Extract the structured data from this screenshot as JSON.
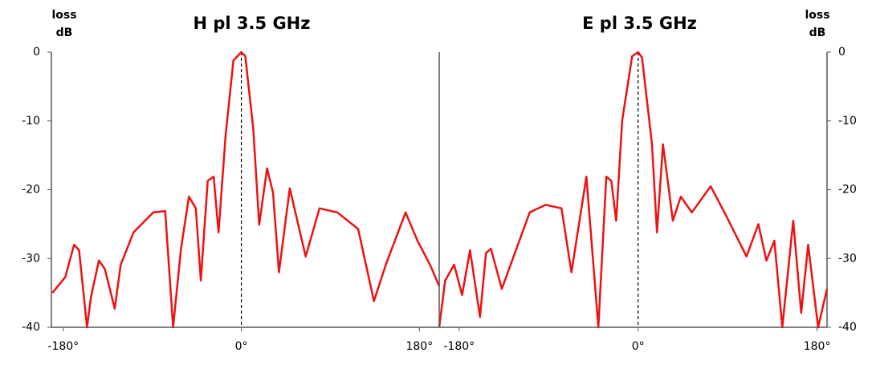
{
  "chart_data": [
    {
      "type": "line",
      "title": "H pl 3.5 GHz",
      "y_label": "loss dB",
      "y_axis_side": "left",
      "xlim": [
        -192,
        200
      ],
      "ylim": [
        -40,
        0
      ],
      "xticks": [
        {
          "value": -180,
          "label": "-180°"
        },
        {
          "value": 0,
          "label": "0°"
        },
        {
          "value": 180,
          "label": "180°"
        }
      ],
      "yticks": [
        0,
        -10,
        -20,
        -30,
        -40
      ],
      "series": [
        {
          "color": "#ee1111",
          "x": [
            -191,
            -178,
            -169,
            -164,
            -156,
            -152,
            -144,
            -138,
            -128,
            -122,
            -109,
            -89,
            -77,
            -69,
            -61,
            -53,
            -46,
            -41,
            -34,
            -28,
            -23,
            -16,
            -8,
            0,
            4,
            12,
            18,
            26,
            32,
            38,
            49,
            65,
            79,
            97,
            118,
            134,
            146,
            166,
            178,
            191,
            200
          ],
          "values": [
            -35,
            -32.7,
            -28,
            -28.8,
            -40,
            -35.6,
            -30.3,
            -31.5,
            -37.3,
            -30.9,
            -26.2,
            -23.3,
            -23.1,
            -40,
            -28.6,
            -21,
            -22.7,
            -33.2,
            -18.7,
            -18.1,
            -26.2,
            -12.2,
            -1.2,
            0,
            -0.6,
            -11.1,
            -25.1,
            -16.9,
            -20.4,
            -32,
            -19.8,
            -29.7,
            -22.7,
            -23.3,
            -25.7,
            -36.2,
            -30.9,
            -23.3,
            -27.4,
            -31,
            -34
          ]
        }
      ]
    },
    {
      "type": "line",
      "title": "E pl 3.5 GHz",
      "y_label": "loss dB",
      "y_axis_side": "right",
      "xlim": [
        -200,
        190
      ],
      "ylim": [
        -40,
        0
      ],
      "xticks": [
        {
          "value": -180,
          "label": "-180°"
        },
        {
          "value": 0,
          "label": "0°"
        },
        {
          "value": 180,
          "label": "180°"
        }
      ],
      "yticks": [
        0,
        -10,
        -20,
        -30,
        -40
      ],
      "series": [
        {
          "color": "#ee1111",
          "x": [
            -200,
            -194,
            -185,
            -177,
            -169,
            -159,
            -153,
            -148,
            -137,
            -109,
            -93,
            -77,
            -67,
            -52,
            -40,
            -32,
            -27,
            -22,
            -16,
            -6,
            0,
            4,
            14,
            19,
            25,
            35,
            43,
            54,
            73,
            89,
            109,
            121,
            129,
            137,
            145,
            156,
            164,
            171,
            181,
            190
          ],
          "values": [
            -40,
            -33.2,
            -30.9,
            -35.3,
            -28.8,
            -38.5,
            -29.2,
            -28.6,
            -34.4,
            -23.3,
            -22.2,
            -22.7,
            -32,
            -18.1,
            -40,
            -18.1,
            -18.7,
            -24.5,
            -9.9,
            -0.6,
            0,
            -0.8,
            -13.4,
            -26.2,
            -13.4,
            -24.5,
            -21,
            -23.3,
            -19.5,
            -23.9,
            -29.7,
            -25,
            -30.3,
            -27.4,
            -40,
            -24.5,
            -37.9,
            -28,
            -40,
            -34.4
          ]
        }
      ]
    }
  ]
}
